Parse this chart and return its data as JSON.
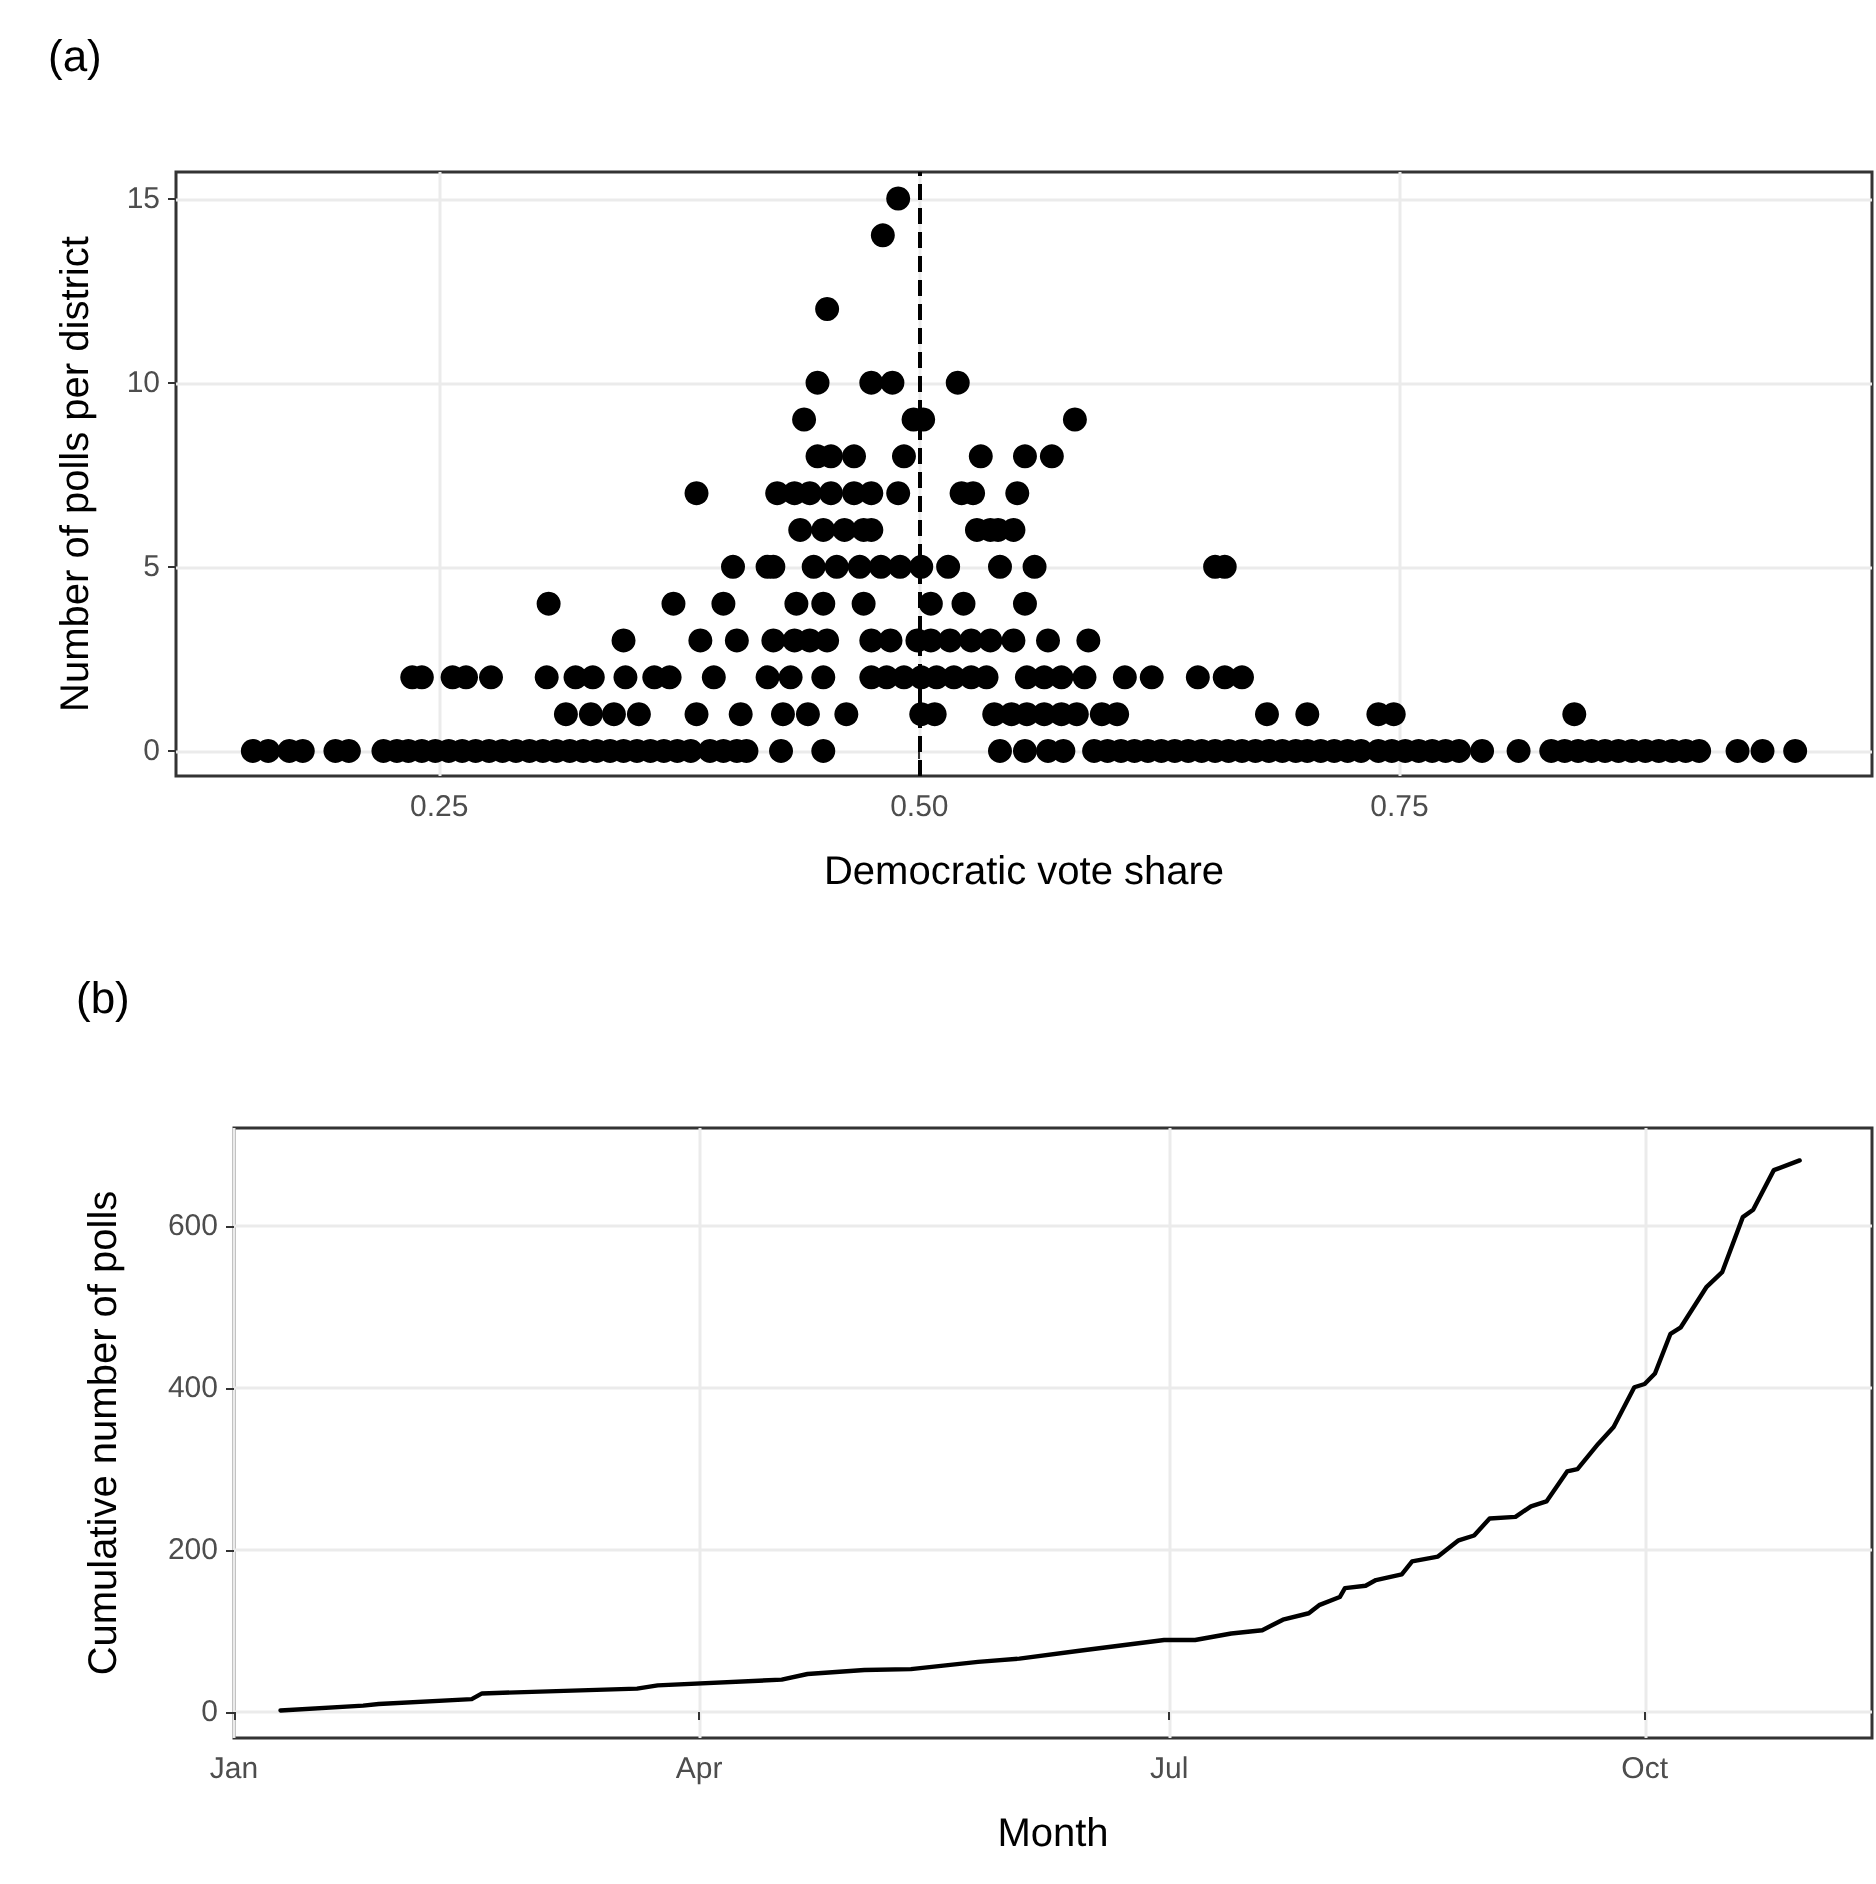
{
  "chart_data": [
    {
      "type": "scatter",
      "title": "(a)",
      "xlabel": "Democratic vote share",
      "ylabel": "Number of polls per district",
      "color": "#000000",
      "marker": "circle",
      "grid": true,
      "xlim": [
        0.113,
        0.996
      ],
      "ylim": [
        -0.68,
        15.72
      ],
      "xticks": [
        0.25,
        {
          "value": 0.5,
          "label": "0.50"
        },
        0.75
      ],
      "yticks": [
        0,
        5,
        10,
        15
      ],
      "ref_lines": [
        {
          "axis": "x",
          "value": 0.5,
          "line_style": "dashed",
          "color": "#000000"
        }
      ],
      "x": [
        0.153,
        0.161,
        0.172,
        0.179,
        0.196,
        0.203,
        0.221,
        0.228,
        0.234,
        0.241,
        0.248,
        0.255,
        0.262,
        0.269,
        0.276,
        0.283,
        0.29,
        0.297,
        0.304,
        0.311,
        0.318,
        0.325,
        0.332,
        0.339,
        0.346,
        0.353,
        0.36,
        0.367,
        0.374,
        0.381,
        0.391,
        0.398,
        0.405,
        0.41,
        0.428,
        0.45,
        0.542,
        0.555,
        0.567,
        0.575,
        0.591,
        0.598,
        0.605,
        0.612,
        0.619,
        0.626,
        0.633,
        0.64,
        0.647,
        0.654,
        0.661,
        0.668,
        0.675,
        0.682,
        0.689,
        0.696,
        0.702,
        0.709,
        0.716,
        0.723,
        0.73,
        0.739,
        0.746,
        0.753,
        0.76,
        0.767,
        0.774,
        0.781,
        0.793,
        0.812,
        0.829,
        0.836,
        0.843,
        0.85,
        0.857,
        0.864,
        0.871,
        0.878,
        0.885,
        0.892,
        0.899,
        0.906,
        0.926,
        0.939,
        0.956,
        0.316,
        0.329,
        0.341,
        0.354,
        0.384,
        0.407,
        0.429,
        0.442,
        0.462,
        0.501,
        0.508,
        0.539,
        0.548,
        0.556,
        0.565,
        0.574,
        0.582,
        0.595,
        0.603,
        0.681,
        0.702,
        0.739,
        0.747,
        0.841,
        0.236,
        0.241,
        0.257,
        0.264,
        0.277,
        0.306,
        0.321,
        0.33,
        0.347,
        0.362,
        0.37,
        0.393,
        0.421,
        0.433,
        0.45,
        0.475,
        0.483,
        0.492,
        0.501,
        0.509,
        0.518,
        0.527,
        0.535,
        0.556,
        0.565,
        0.574,
        0.586,
        0.607,
        0.621,
        0.645,
        0.659,
        0.668,
        0.346,
        0.386,
        0.405,
        0.424,
        0.435,
        0.443,
        0.452,
        0.475,
        0.485,
        0.499,
        0.506,
        0.516,
        0.527,
        0.537,
        0.549,
        0.567,
        0.588,
        0.307,
        0.372,
        0.398,
        0.436,
        0.45,
        0.471,
        0.506,
        0.523,
        0.555,
        0.403,
        0.421,
        0.424,
        0.445,
        0.457,
        0.469,
        0.48,
        0.49,
        0.501,
        0.515,
        0.542,
        0.56,
        0.654,
        0.659,
        0.438,
        0.45,
        0.461,
        0.471,
        0.475,
        0.53,
        0.537,
        0.541,
        0.549,
        0.384,
        0.426,
        0.435,
        0.443,
        0.454,
        0.466,
        0.475,
        0.489,
        0.522,
        0.528,
        0.551,
        0.447,
        0.454,
        0.466,
        0.492,
        0.532,
        0.555,
        0.569,
        0.44,
        0.497,
        0.502,
        0.581,
        0.447,
        0.475,
        0.486,
        0.52,
        0.452,
        0.481,
        0.489
      ],
      "values": [
        0,
        0,
        0,
        0,
        0,
        0,
        0,
        0,
        0,
        0,
        0,
        0,
        0,
        0,
        0,
        0,
        0,
        0,
        0,
        0,
        0,
        0,
        0,
        0,
        0,
        0,
        0,
        0,
        0,
        0,
        0,
        0,
        0,
        0,
        0,
        0,
        0,
        0,
        0,
        0,
        0,
        0,
        0,
        0,
        0,
        0,
        0,
        0,
        0,
        0,
        0,
        0,
        0,
        0,
        0,
        0,
        0,
        0,
        0,
        0,
        0,
        0,
        0,
        0,
        0,
        0,
        0,
        0,
        0,
        0,
        0,
        0,
        0,
        0,
        0,
        0,
        0,
        0,
        0,
        0,
        0,
        0,
        0,
        0,
        0,
        1,
        1,
        1,
        1,
        1,
        1,
        1,
        1,
        1,
        1,
        1,
        1,
        1,
        1,
        1,
        1,
        1,
        1,
        1,
        1,
        1,
        1,
        1,
        1,
        2,
        2,
        2,
        2,
        2,
        2,
        2,
        2,
        2,
        2,
        2,
        2,
        2,
        2,
        2,
        2,
        2,
        2,
        2,
        2,
        2,
        2,
        2,
        2,
        2,
        2,
        2,
        2,
        2,
        2,
        2,
        2,
        3,
        3,
        3,
        3,
        3,
        3,
        3,
        3,
        3,
        3,
        3,
        3,
        3,
        3,
        3,
        3,
        3,
        4,
        4,
        4,
        4,
        4,
        4,
        4,
        4,
        4,
        5,
        5,
        5,
        5,
        5,
        5,
        5,
        5,
        5,
        5,
        5,
        5,
        5,
        5,
        6,
        6,
        6,
        6,
        6,
        6,
        6,
        6,
        6,
        7,
        7,
        7,
        7,
        7,
        7,
        7,
        7,
        7,
        7,
        7,
        8,
        8,
        8,
        8,
        8,
        8,
        8,
        9,
        9,
        9,
        9,
        10,
        10,
        10,
        10,
        12,
        14,
        15
      ]
    },
    {
      "type": "line",
      "title": "(b)",
      "xlabel": "Month",
      "ylabel": "Cumulative number of polls",
      "color": "#000000",
      "grid": true,
      "xlim": [
        "--01-01",
        "--11-14"
      ],
      "ylim": [
        -32,
        721
      ],
      "xticks": [
        {
          "value": "--01-01",
          "label": "Jan"
        },
        {
          "value": "--04-01",
          "label": "Apr"
        },
        {
          "value": "--07-01",
          "label": "Jul"
        },
        {
          "value": "--10-01",
          "label": "Oct"
        }
      ],
      "yticks": [
        0,
        200,
        400,
        600
      ],
      "x": [
        "--01-10",
        "--01-26",
        "--01-29",
        "--02-16",
        "--02-18",
        "--03-20",
        "--03-24",
        "--04-17",
        "--04-22",
        "--05-03",
        "--05-12",
        "--05-25",
        "--06-02",
        "--06-14",
        "--06-30",
        "--07-06",
        "--07-13",
        "--07-19",
        "--07-23",
        "--07-28",
        "--07-30",
        "--08-03",
        "--08-04",
        "--08-08",
        "--08-10",
        "--08-15",
        "--08-17",
        "--08-22",
        "--08-26",
        "--08-29",
        "--09-01",
        "--09-06",
        "--09-09",
        "--09-12",
        "--09-16",
        "--09-18",
        "--09-22",
        "--09-25",
        "--09-29",
        "--10-01",
        "--10-03",
        "--10-06",
        "--10-08",
        "--10-13",
        "--10-16",
        "--10-20",
        "--10-22",
        "--10-26",
        "--10-31"
      ],
      "values": [
        2,
        8,
        10,
        16,
        23,
        29,
        33,
        40,
        47,
        52,
        53,
        62,
        66,
        76,
        89,
        89,
        97,
        101,
        114,
        122,
        132,
        142,
        153,
        156,
        163,
        170,
        186,
        192,
        212,
        218,
        239,
        241,
        254,
        260,
        297,
        300,
        331,
        352,
        401,
        405,
        418,
        467,
        475,
        525,
        543,
        611,
        620,
        669,
        681
      ]
    }
  ]
}
